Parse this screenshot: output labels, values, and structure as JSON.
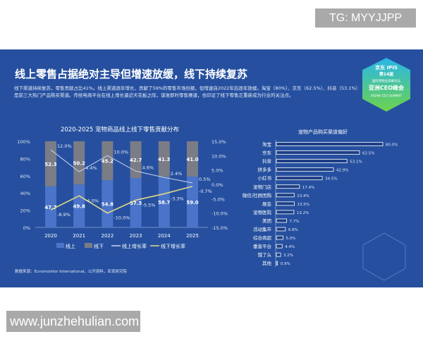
{
  "watermarks": {
    "top": "TG: MYYJJPP",
    "bottom": "www.junzhehulian.com"
  },
  "header": {
    "title": "线上零售占据绝对主导但增速放缓，线下持续复苏",
    "description": "线下渠道持续复苏，零售贡献占比41%。线上渠道逐年增长，贡献了59%的零售市场份额，但增速自2022年后逐年放缓。淘宝（80%）、京东（62.5%）、抖音（53.1%）是前三大热门产品购买渠道。传统电商平台在线上增长逼近天花板之际，谋准即时零售赛道，也印证了线下零售正重新成为行业的关注点。"
  },
  "logo": {
    "lines": [
      "京东 IPIS",
      "第14届",
      "国际宠物业高峰论坛",
      "亚洲CEO峰会",
      "ASIAN CEO SUMMIT"
    ]
  },
  "source": "数据来源：Euromonitor International，公开资料，亚宠研究院",
  "colors": {
    "online": "#4a74c9",
    "offline": "#7a7c86",
    "online_rate": "#c9d3ea",
    "offline_rate": "#e2d98a"
  },
  "chart_data": [
    {
      "type": "bar",
      "title": "2020-2025 宠物商品线上线下零售贡献分布",
      "stacked": true,
      "categories": [
        "2020",
        "2021",
        "2022",
        "2023",
        "2024",
        "2025"
      ],
      "y_ticks": [
        "0%",
        "20%",
        "40%",
        "60%",
        "80%",
        "100%"
      ],
      "y2_ticks": [
        "-15.0%",
        "-10.0%",
        "-5.0%",
        "0.0%",
        "5.0%",
        "10.0%",
        "15.0%"
      ],
      "ylim": [
        0,
        100
      ],
      "y2lim": [
        -15,
        15
      ],
      "series": [
        {
          "name": "线上",
          "type": "bar",
          "values": [
            47.7,
            49.8,
            54.8,
            57.3,
            58.7,
            59.0
          ],
          "labels": [
            "47.7",
            "49.8",
            "54.8",
            "57.3",
            "58.7",
            "59.0"
          ]
        },
        {
          "name": "线下",
          "type": "bar",
          "values": [
            52.3,
            50.2,
            45.2,
            42.7,
            41.3,
            41.0
          ],
          "labels": [
            "52.3",
            "50.2",
            "45.2",
            "42.7",
            "41.3",
            "41.0"
          ]
        },
        {
          "name": "线上增长率",
          "type": "line",
          "axis": "right",
          "values": [
            12.0,
            4.4,
            10.0,
            4.6,
            2.4,
            0.5
          ],
          "labels": [
            "12.0%",
            "4.4%",
            "10.0%",
            "4.6%",
            "2.4%",
            "0.5%"
          ]
        },
        {
          "name": "线下增长率",
          "type": "line",
          "axis": "right",
          "values": [
            -8.9,
            -4.0,
            -10.0,
            -5.5,
            -3.3,
            -0.7
          ],
          "labels": [
            "-8.9%",
            "-4.0%",
            "-10.0%",
            "-5.5%",
            "-3.3%",
            "-0.7%"
          ]
        }
      ],
      "legend": "bottom"
    },
    {
      "type": "bar",
      "orientation": "horizontal",
      "title": "宠物产品购买渠道偏好",
      "categories": [
        "淘宝",
        "京东",
        "抖音",
        "拼多多",
        "小红书",
        "宠物门店",
        "微信/社群团购",
        "展会",
        "宠物医院",
        "美团",
        "活动集市",
        "综合商超",
        "垂直平台",
        "饿了么",
        "其他"
      ],
      "values": [
        80.0,
        62.5,
        53.1,
        42.9,
        34.5,
        17.4,
        13.4,
        13.5,
        13.2,
        7.7,
        6.8,
        5.0,
        4.4,
        3.2,
        0.9
      ],
      "labels": [
        "80.0%",
        "62.5%",
        "53.1%",
        "42.9%",
        "34.5%",
        "17.4%",
        "13.4%",
        "13.5%",
        "13.2%",
        "7.7%",
        "6.8%",
        "5.0%",
        "4.4%",
        "3.2%",
        "0.9%"
      ]
    }
  ]
}
